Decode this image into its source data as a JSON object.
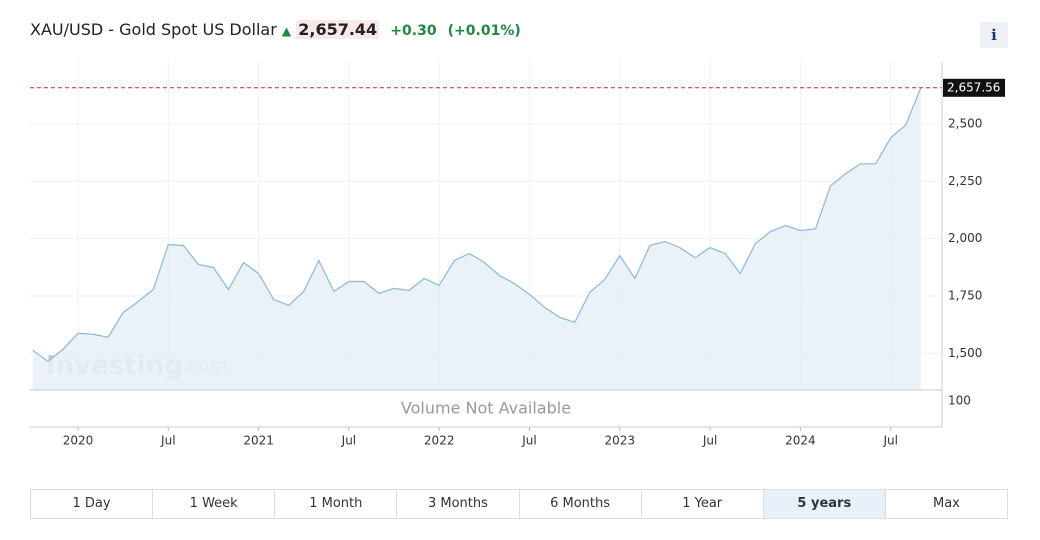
{
  "header": {
    "title": "XAU/USD - Gold Spot US Dollar",
    "price": "2,657.44",
    "change": "+0.30",
    "change_pct": "(+0.01%)",
    "info": "i"
  },
  "chart_data": {
    "type": "line",
    "x": [
      "2019-10",
      "2019-11",
      "2019-12",
      "2020-01",
      "2020-02",
      "2020-03",
      "2020-04",
      "2020-05",
      "2020-06",
      "2020-07",
      "2020-08",
      "2020-09",
      "2020-10",
      "2020-11",
      "2020-12",
      "2021-01",
      "2021-02",
      "2021-03",
      "2021-04",
      "2021-05",
      "2021-06",
      "2021-07",
      "2021-08",
      "2021-09",
      "2021-10",
      "2021-11",
      "2021-12",
      "2022-01",
      "2022-02",
      "2022-03",
      "2022-04",
      "2022-05",
      "2022-06",
      "2022-07",
      "2022-08",
      "2022-09",
      "2022-10",
      "2022-11",
      "2022-12",
      "2023-01",
      "2023-02",
      "2023-03",
      "2023-04",
      "2023-05",
      "2023-06",
      "2023-07",
      "2023-08",
      "2023-09",
      "2023-10",
      "2023-11",
      "2023-12",
      "2024-01",
      "2024-02",
      "2024-03",
      "2024-04",
      "2024-05",
      "2024-06",
      "2024-07",
      "2024-08",
      "2024-09"
    ],
    "values": [
      1513,
      1465,
      1517,
      1587,
      1583,
      1570,
      1678,
      1726,
      1778,
      1974,
      1970,
      1887,
      1874,
      1778,
      1896,
      1848,
      1735,
      1709,
      1770,
      1904,
      1770,
      1813,
      1813,
      1761,
      1783,
      1774,
      1826,
      1796,
      1904,
      1935,
      1896,
      1839,
      1804,
      1757,
      1700,
      1657,
      1635,
      1765,
      1822,
      1926,
      1826,
      1970,
      1987,
      1961,
      1917,
      1961,
      1935,
      1848,
      1978,
      2030,
      2057,
      2035,
      2043,
      2230,
      2283,
      2326,
      2326,
      2439,
      2496,
      2657.56
    ],
    "color": "#8ab8dc",
    "fill_color": "#e6eef6",
    "ylim": [
      1340,
      2770
    ],
    "yticks": [
      {
        "value": 1500,
        "label": "1,500"
      },
      {
        "value": 1750,
        "label": "1,750"
      },
      {
        "value": 2000,
        "label": "2,000"
      },
      {
        "value": 2250,
        "label": "2,250"
      },
      {
        "value": 2500,
        "label": "2,500"
      }
    ],
    "xticks": [
      {
        "value": "2020-01",
        "label": "2020"
      },
      {
        "value": "2020-07",
        "label": "Jul"
      },
      {
        "value": "2021-01",
        "label": "2021"
      },
      {
        "value": "2021-07",
        "label": "Jul"
      },
      {
        "value": "2022-01",
        "label": "2022"
      },
      {
        "value": "2022-07",
        "label": "Jul"
      },
      {
        "value": "2023-01",
        "label": "2023"
      },
      {
        "value": "2023-07",
        "label": "Jul"
      },
      {
        "value": "2024-01",
        "label": "2024"
      },
      {
        "value": "2024-07",
        "label": "Jul"
      }
    ],
    "last_price": {
      "value": 2657.56,
      "label": "2,657.56"
    },
    "grid": true
  },
  "volume": {
    "message": "Volume Not Available",
    "tick": "100"
  },
  "watermark": {
    "brand": "Investing",
    "suffix": ".com"
  },
  "range_buttons": {
    "items": [
      "1 Day",
      "1 Week",
      "1 Month",
      "3 Months",
      "6 Months",
      "1 Year",
      "5 years",
      "Max"
    ],
    "active": "5 years"
  }
}
